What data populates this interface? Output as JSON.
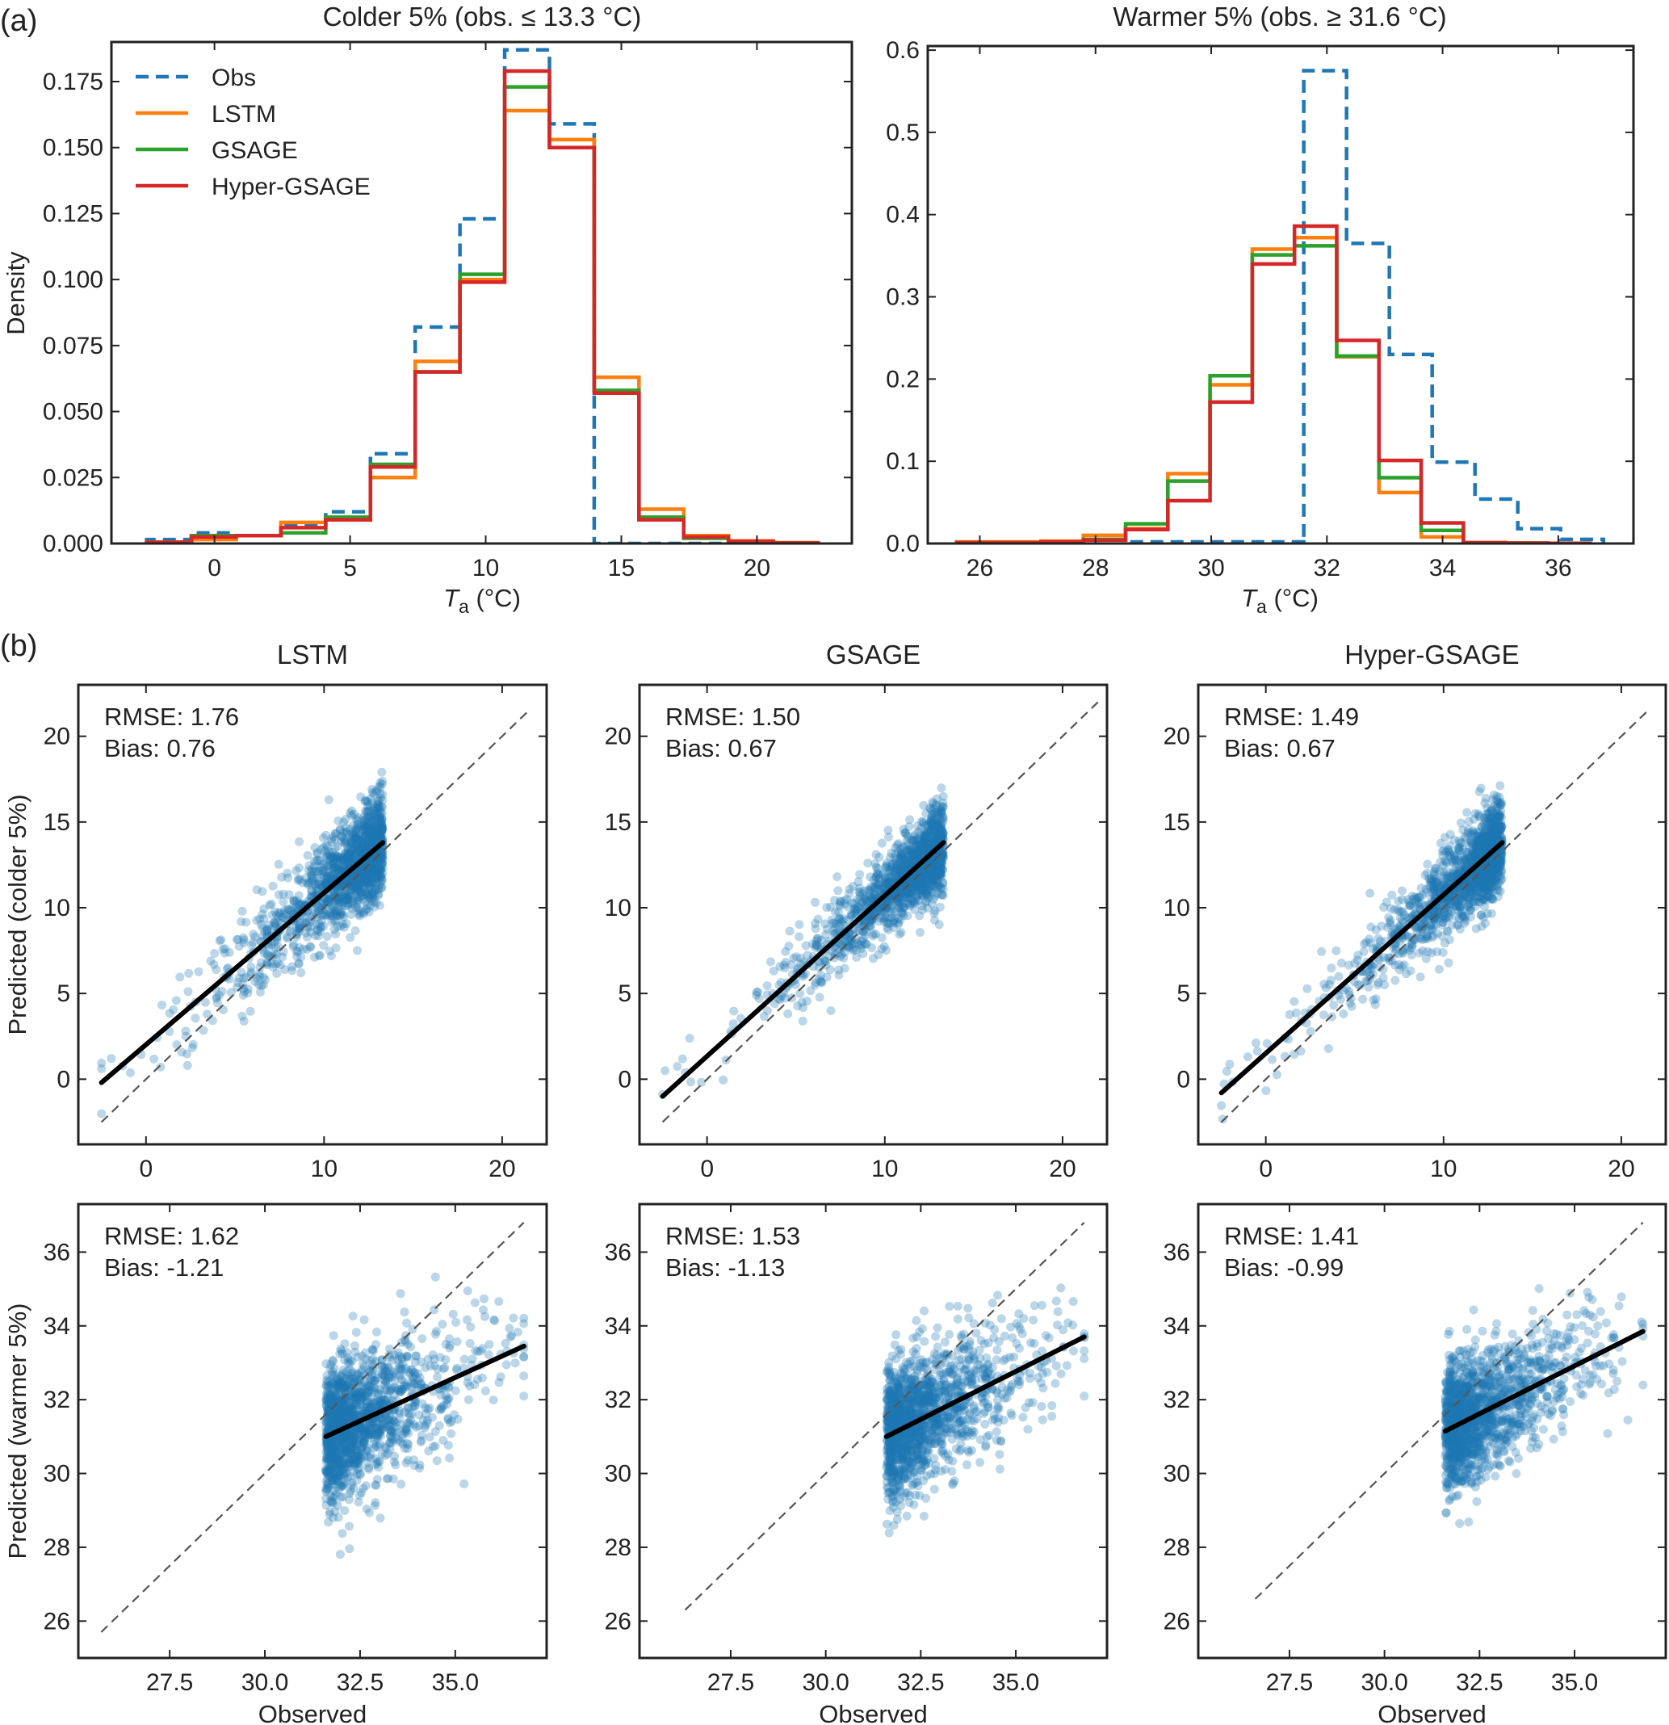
{
  "figure": {
    "panel_a_tag": "(a)",
    "panel_b_tag": "(b)"
  },
  "colors": {
    "obs": "#1f77b4",
    "lstm": "#ff7f0e",
    "gsage": "#2ca02c",
    "hyper_gsage": "#d62728",
    "scatter_points": "#1f77b4",
    "fit_line": "#000000",
    "identity_line": "#555555"
  },
  "chart_data": [
    {
      "id": "hist-colder",
      "type": "line",
      "subtype": "step-histogram",
      "title": "Colder 5% (obs. ≤ 13.3 °C)",
      "xlabel_main": "T",
      "xlabel_sub": "a",
      "xlabel_unit": " (°C)",
      "ylabel": "Density",
      "xlim": [
        -3.8,
        23.5
      ],
      "ylim": [
        0,
        0.19
      ],
      "xticks": [
        0,
        5,
        10,
        15,
        20
      ],
      "xtick_labels": [
        "0",
        "5",
        "10",
        "15",
        "20"
      ],
      "yticks": [
        0,
        0.025,
        0.05,
        0.075,
        0.1,
        0.125,
        0.15,
        0.175
      ],
      "ytick_labels": [
        "0.000",
        "0.025",
        "0.050",
        "0.075",
        "0.100",
        "0.125",
        "0.150",
        "0.175"
      ],
      "legend": {
        "placement": "top-left",
        "entries": [
          "Obs",
          "LSTM",
          "GSAGE",
          "Hyper-GSAGE"
        ]
      },
      "bin_edges": [
        -2.5,
        -0.85,
        0.8,
        2.45,
        4.1,
        5.75,
        7.4,
        9.05,
        10.7,
        12.35,
        14.0,
        15.65,
        17.3,
        18.95,
        20.6,
        22.25
      ],
      "series": [
        {
          "name": "Obs",
          "style": "dashed",
          "values": [
            0.0015,
            0.004,
            0.003,
            0.007,
            0.012,
            0.034,
            0.082,
            0.123,
            0.187,
            0.159,
            0.0,
            0.0,
            0.0,
            0.0,
            0.0
          ]
        },
        {
          "name": "LSTM",
          "style": "solid",
          "values": [
            0.0005,
            0.0015,
            0.003,
            0.008,
            0.009,
            0.025,
            0.069,
            0.1,
            0.164,
            0.153,
            0.063,
            0.013,
            0.003,
            0.001,
            0.0003
          ]
        },
        {
          "name": "GSAGE",
          "style": "solid",
          "values": [
            0.0005,
            0.003,
            0.003,
            0.004,
            0.01,
            0.03,
            0.065,
            0.102,
            0.173,
            0.15,
            0.058,
            0.01,
            0.002,
            0.0005,
            0.0002
          ]
        },
        {
          "name": "Hyper-GSAGE",
          "style": "solid",
          "values": [
            0.0005,
            0.0025,
            0.003,
            0.006,
            0.009,
            0.029,
            0.065,
            0.099,
            0.179,
            0.15,
            0.057,
            0.009,
            0.0025,
            0.0008,
            0.0002
          ]
        }
      ]
    },
    {
      "id": "hist-warmer",
      "type": "line",
      "subtype": "step-histogram",
      "title": "Warmer 5% (obs. ≥ 31.6 °C)",
      "xlabel_main": "T",
      "xlabel_sub": "a",
      "xlabel_unit": " (°C)",
      "ylabel": "",
      "xlim": [
        25.1,
        37.3
      ],
      "ylim": [
        0,
        0.605
      ],
      "xticks": [
        26,
        28,
        30,
        32,
        34,
        36
      ],
      "xtick_labels": [
        "26",
        "28",
        "30",
        "32",
        "34",
        "36"
      ],
      "yticks": [
        0,
        0.1,
        0.2,
        0.3,
        0.4,
        0.5,
        0.6
      ],
      "ytick_labels": [
        "0.0",
        "0.1",
        "0.2",
        "0.3",
        "0.4",
        "0.5",
        "0.6"
      ],
      "bin_edges": [
        25.6,
        26.33,
        27.06,
        27.79,
        28.52,
        29.25,
        29.98,
        30.71,
        31.44,
        32.17,
        32.9,
        33.63,
        34.36,
        35.09,
        35.82,
        36.55
      ],
      "obs_bin_edges": [
        31.6,
        32.34,
        33.08,
        33.82,
        34.56,
        35.3,
        36.04,
        36.78
      ],
      "obs_leading_zero_from": 28.6,
      "series": [
        {
          "name": "Obs",
          "style": "dashed",
          "values": [
            0.575,
            0.365,
            0.23,
            0.099,
            0.054,
            0.018,
            0.005
          ]
        },
        {
          "name": "LSTM",
          "style": "solid",
          "values": [
            0.002,
            0.002,
            0.003,
            0.01,
            0.018,
            0.085,
            0.193,
            0.358,
            0.372,
            0.227,
            0.062,
            0.008,
            0.001,
            0.0005,
            0.0003
          ]
        },
        {
          "name": "GSAGE",
          "style": "solid",
          "values": [
            0.001,
            0.001,
            0.002,
            0.005,
            0.024,
            0.076,
            0.204,
            0.351,
            0.362,
            0.228,
            0.08,
            0.016,
            0.001,
            0.0005,
            0.0002
          ]
        },
        {
          "name": "Hyper-GSAGE",
          "style": "solid",
          "values": [
            0.001,
            0.001,
            0.002,
            0.004,
            0.017,
            0.052,
            0.172,
            0.34,
            0.386,
            0.247,
            0.101,
            0.025,
            0.001,
            0.0005,
            0.0002
          ]
        }
      ]
    },
    {
      "id": "scatter-lstm-colder",
      "type": "scatter",
      "title": "LSTM",
      "ylabel": "Predicted (colder 5%)",
      "xlabel": "",
      "xlim": [
        -3.8,
        22.5
      ],
      "ylim": [
        -3.8,
        23.0
      ],
      "xticks": [
        0,
        10,
        20
      ],
      "xtick_labels": [
        "0",
        "10",
        "20"
      ],
      "yticks": [
        0,
        5,
        10,
        15,
        20
      ],
      "ytick_labels": [
        "0",
        "5",
        "10",
        "15",
        "20"
      ],
      "annotation": {
        "rmse": "RMSE: 1.76",
        "bias": "Bias: 0.76"
      },
      "obs_range": [
        -2.5,
        13.3
      ],
      "fit_line": {
        "x": [
          -2.5,
          13.3
        ],
        "y": [
          -0.2,
          13.8
        ]
      },
      "identity_line": {
        "from": -2.5,
        "to": 21.5
      },
      "point_spread": 1.76,
      "point_bias": 0.76
    },
    {
      "id": "scatter-gsage-colder",
      "type": "scatter",
      "title": "GSAGE",
      "ylabel": "",
      "xlabel": "",
      "xlim": [
        -3.8,
        22.5
      ],
      "ylim": [
        -3.8,
        23.0
      ],
      "xticks": [
        0,
        10,
        20
      ],
      "xtick_labels": [
        "0",
        "10",
        "20"
      ],
      "yticks": [
        0,
        5,
        10,
        15,
        20
      ],
      "ytick_labels": [
        "0",
        "5",
        "10",
        "15",
        "20"
      ],
      "annotation": {
        "rmse": "RMSE: 1.50",
        "bias": "Bias: 0.67"
      },
      "obs_range": [
        -2.5,
        13.3
      ],
      "fit_line": {
        "x": [
          -2.5,
          13.3
        ],
        "y": [
          -1.0,
          13.8
        ]
      },
      "identity_line": {
        "from": -2.5,
        "to": 22.0
      },
      "point_spread": 1.5,
      "point_bias": 0.67
    },
    {
      "id": "scatter-hyper-colder",
      "type": "scatter",
      "title": "Hyper-GSAGE",
      "ylabel": "",
      "xlabel": "",
      "xlim": [
        -3.8,
        22.5
      ],
      "ylim": [
        -3.8,
        23.0
      ],
      "xticks": [
        0,
        10,
        20
      ],
      "xtick_labels": [
        "0",
        "10",
        "20"
      ],
      "yticks": [
        0,
        5,
        10,
        15,
        20
      ],
      "ytick_labels": [
        "0",
        "5",
        "10",
        "15",
        "20"
      ],
      "annotation": {
        "rmse": "RMSE: 1.49",
        "bias": "Bias: 0.67"
      },
      "obs_range": [
        -2.5,
        13.3
      ],
      "fit_line": {
        "x": [
          -2.5,
          13.3
        ],
        "y": [
          -0.8,
          13.8
        ]
      },
      "identity_line": {
        "from": -2.5,
        "to": 21.5
      },
      "point_spread": 1.49,
      "point_bias": 0.67
    },
    {
      "id": "scatter-lstm-warmer",
      "type": "scatter",
      "title": "",
      "ylabel": "Predicted (warmer 5%)",
      "xlabel": "Observed",
      "xlim": [
        25.1,
        37.4
      ],
      "ylim": [
        25.0,
        37.3
      ],
      "xticks": [
        27.5,
        30.0,
        32.5,
        35.0
      ],
      "xtick_labels": [
        "27.5",
        "30.0",
        "32.5",
        "35.0"
      ],
      "yticks": [
        26,
        28,
        30,
        32,
        34,
        36
      ],
      "ytick_labels": [
        "26",
        "28",
        "30",
        "32",
        "34",
        "36"
      ],
      "annotation": {
        "rmse": "RMSE: 1.62",
        "bias": "Bias: -1.21"
      },
      "obs_range": [
        31.6,
        36.8
      ],
      "fit_line": {
        "x": [
          31.6,
          36.8
        ],
        "y": [
          31.0,
          33.45
        ]
      },
      "identity_line": {
        "from": 25.7,
        "to": 36.8
      },
      "point_spread": 1.1,
      "point_bias": -1.21
    },
    {
      "id": "scatter-gsage-warmer",
      "type": "scatter",
      "title": "",
      "ylabel": "",
      "xlabel": "Observed",
      "xlim": [
        25.1,
        37.4
      ],
      "ylim": [
        25.0,
        37.3
      ],
      "xticks": [
        27.5,
        30.0,
        32.5,
        35.0
      ],
      "xtick_labels": [
        "27.5",
        "30.0",
        "32.5",
        "35.0"
      ],
      "yticks": [
        26,
        28,
        30,
        32,
        34,
        36
      ],
      "ytick_labels": [
        "26",
        "28",
        "30",
        "32",
        "34",
        "36"
      ],
      "annotation": {
        "rmse": "RMSE: 1.53",
        "bias": "Bias: -1.13"
      },
      "obs_range": [
        31.6,
        36.8
      ],
      "fit_line": {
        "x": [
          31.6,
          36.8
        ],
        "y": [
          31.0,
          33.7
        ]
      },
      "identity_line": {
        "from": 26.3,
        "to": 36.8
      },
      "point_spread": 1.05,
      "point_bias": -1.13
    },
    {
      "id": "scatter-hyper-warmer",
      "type": "scatter",
      "title": "",
      "ylabel": "",
      "xlabel": "Observed",
      "xlim": [
        25.1,
        37.4
      ],
      "ylim": [
        25.0,
        37.3
      ],
      "xticks": [
        27.5,
        30.0,
        32.5,
        35.0
      ],
      "xtick_labels": [
        "27.5",
        "30.0",
        "32.5",
        "35.0"
      ],
      "yticks": [
        26,
        28,
        30,
        32,
        34,
        36
      ],
      "ytick_labels": [
        "26",
        "28",
        "30",
        "32",
        "34",
        "36"
      ],
      "annotation": {
        "rmse": "RMSE: 1.41",
        "bias": "Bias: -0.99"
      },
      "obs_range": [
        31.6,
        36.8
      ],
      "fit_line": {
        "x": [
          31.6,
          36.8
        ],
        "y": [
          31.15,
          33.85
        ]
      },
      "identity_line": {
        "from": 26.6,
        "to": 36.8
      },
      "point_spread": 1.0,
      "point_bias": -0.99
    }
  ]
}
